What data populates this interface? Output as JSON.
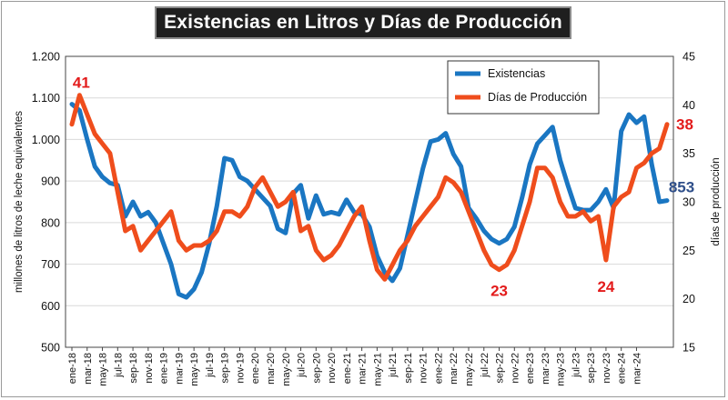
{
  "chart_data": {
    "type": "line",
    "title": "Existencias en Litros y Días de Producción",
    "ylabel_left": "millones de litros de leche equivalentes",
    "ylabel_right": "días de producción",
    "ylim_left": [
      500,
      1200
    ],
    "ylim_right": [
      15,
      45
    ],
    "y_ticks_left": [
      "500",
      "600",
      "700",
      "800",
      "900",
      "1.000",
      "1.100",
      "1.200"
    ],
    "y_ticks_right": [
      "15",
      "20",
      "25",
      "30",
      "35",
      "40",
      "45"
    ],
    "x_tick_labels": [
      "ene-18",
      "mar-18",
      "may-18",
      "jul-18",
      "sep-18",
      "nov-18",
      "ene-19",
      "mar-19",
      "may-19",
      "jul-19",
      "sep-19",
      "nov-19",
      "ene-20",
      "mar-20",
      "may-20",
      "jul-20",
      "sep-20",
      "nov-20",
      "ene-21",
      "mar-21",
      "may-21",
      "jul-21",
      "sep-21",
      "nov-21",
      "ene-22",
      "mar-22",
      "may-22",
      "jul-22",
      "sep-22",
      "nov-22",
      "ene-23",
      "mar-23",
      "may-23",
      "jul-23",
      "sep-23",
      "nov-23",
      "ene-24",
      "mar-24"
    ],
    "grid": true,
    "legend_position": "top-right",
    "series": [
      {
        "name": "Existencias",
        "axis": "left",
        "color": "#1a76c2",
        "values": [
          1085,
          1070,
          1000,
          935,
          910,
          895,
          890,
          815,
          850,
          815,
          825,
          800,
          750,
          700,
          628,
          620,
          640,
          680,
          750,
          840,
          955,
          950,
          910,
          900,
          880,
          860,
          840,
          785,
          775,
          870,
          890,
          810,
          865,
          820,
          825,
          820,
          855,
          825,
          820,
          790,
          720,
          680,
          660,
          690,
          770,
          850,
          930,
          995,
          1000,
          1015,
          965,
          935,
          835,
          810,
          780,
          760,
          750,
          760,
          790,
          860,
          940,
          990,
          1010,
          1030,
          950,
          890,
          835,
          830,
          830,
          850,
          880,
          835,
          1020,
          1060,
          1040,
          1055,
          940,
          850,
          853
        ]
      },
      {
        "name": "Días de Producción",
        "axis": "right",
        "color": "#ef4d1c",
        "values": [
          38,
          41,
          39,
          37,
          36,
          35,
          31,
          27,
          27.5,
          25,
          26,
          27,
          28,
          29,
          26,
          25,
          25.5,
          25.5,
          26,
          27,
          29,
          29,
          28.5,
          29.5,
          31.5,
          32.5,
          31,
          29.5,
          30,
          31,
          27,
          27.5,
          25,
          24,
          24.5,
          25.5,
          27,
          28.5,
          29.5,
          26,
          23,
          22,
          23.5,
          25,
          26,
          27.5,
          28.5,
          29.5,
          30.5,
          32.5,
          32,
          31,
          29,
          27,
          25,
          23.5,
          23,
          23.5,
          25,
          27.5,
          30,
          33.5,
          33.5,
          32.5,
          30,
          28.5,
          28.5,
          29,
          28,
          28.5,
          24,
          29.5,
          30.5,
          31,
          33.5,
          34,
          35,
          35.5,
          38
        ]
      }
    ],
    "annotations": [
      {
        "text": "41",
        "series": "Días de Producción",
        "index": 1,
        "color": "#e31b1b"
      },
      {
        "text": "23",
        "series": "Días de Producción",
        "index": 56,
        "color": "#e31b1b"
      },
      {
        "text": "24",
        "series": "Días de Producción",
        "index": 70,
        "color": "#e31b1b"
      },
      {
        "text": "38",
        "series": "Días de Producción",
        "index": 78,
        "color": "#e31b1b"
      },
      {
        "text": "853",
        "series": "Existencias",
        "index": 78,
        "color": "#2f4f8a"
      }
    ]
  }
}
